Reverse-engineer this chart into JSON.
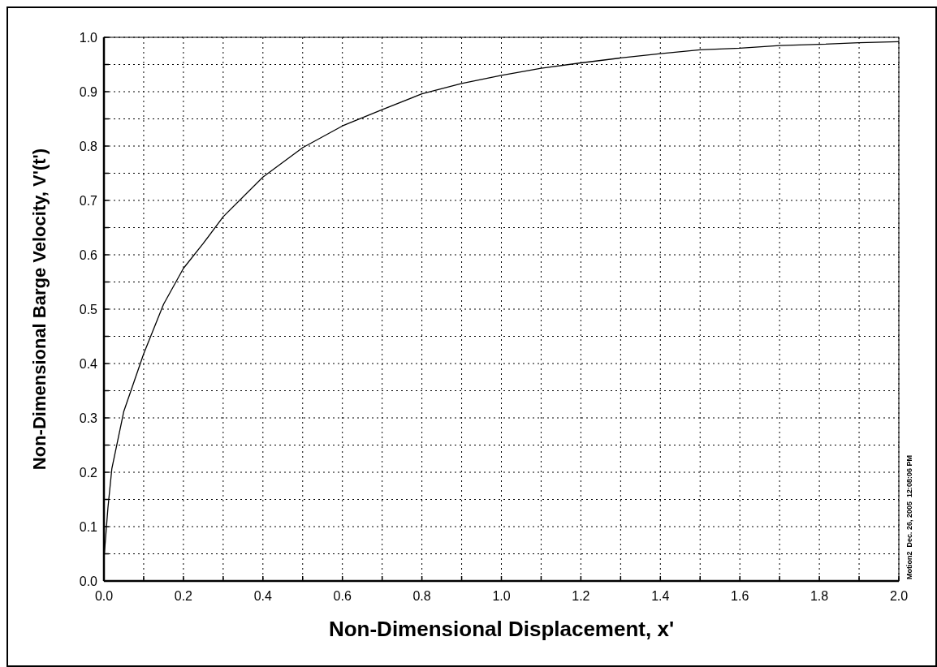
{
  "chart_data": {
    "type": "line",
    "xlabel": "Non-Dimensional Displacement, x'",
    "ylabel": "Non-Dimensional Barge Velocity, V'(t')",
    "x": [
      0,
      0.01,
      0.02,
      0.05,
      0.1,
      0.15,
      0.2,
      0.25,
      0.3,
      0.4,
      0.5,
      0.6,
      0.7,
      0.8,
      0.9,
      1.0,
      1.1,
      1.2,
      1.3,
      1.4,
      1.5,
      1.6,
      1.7,
      1.8,
      1.9,
      2.0
    ],
    "series": [
      {
        "color": "#000000",
        "values": [
          0.04,
          0.134,
          0.207,
          0.312,
          0.418,
          0.509,
          0.575,
          0.621,
          0.67,
          0.743,
          0.797,
          0.837,
          0.867,
          0.896,
          0.915,
          0.93,
          0.943,
          0.953,
          0.962,
          0.97,
          0.977,
          0.98,
          0.985,
          0.987,
          0.99,
          0.992
        ]
      }
    ],
    "xlim": [
      0,
      2
    ],
    "xticks": [
      {
        "value": 0,
        "label": "0.0"
      },
      {
        "value": 0.1,
        "label": null
      },
      0.2,
      {
        "value": 0.3,
        "label": null
      },
      0.4,
      {
        "value": 0.5,
        "label": null
      },
      0.6,
      {
        "value": 0.7,
        "label": null
      },
      0.8,
      {
        "value": 0.9,
        "label": null
      },
      {
        "value": 1,
        "label": "1.0"
      },
      {
        "value": 1.1,
        "label": null
      },
      1.2,
      {
        "value": 1.3,
        "label": null
      },
      1.4,
      {
        "value": 1.5,
        "label": null
      },
      1.6,
      {
        "value": 1.7,
        "label": null
      },
      1.8,
      {
        "value": 1.9,
        "label": null
      },
      {
        "value": 2,
        "label": "2.0"
      }
    ],
    "ylim": [
      0,
      1
    ],
    "yticks": [
      {
        "value": 0,
        "label": "0.0"
      },
      {
        "value": 0.05,
        "label": null
      },
      0.1,
      {
        "value": 0.15,
        "label": null
      },
      0.2,
      {
        "value": 0.25,
        "label": null
      },
      0.3,
      {
        "value": 0.35,
        "label": null
      },
      0.4,
      {
        "value": 0.45,
        "label": null
      },
      0.5,
      {
        "value": 0.55,
        "label": null
      },
      0.6,
      {
        "value": 0.65,
        "label": null
      },
      0.7,
      {
        "value": 0.75,
        "label": null
      },
      0.8,
      {
        "value": 0.85,
        "label": null
      },
      0.9,
      {
        "value": 0.95,
        "label": null
      },
      {
        "value": 1,
        "label": "1.0"
      }
    ],
    "grid": true,
    "marker": "none",
    "line_style": "solid",
    "annotations": [
      "Motion2  Dec. 26, 2005  12:08:06 PM"
    ]
  }
}
